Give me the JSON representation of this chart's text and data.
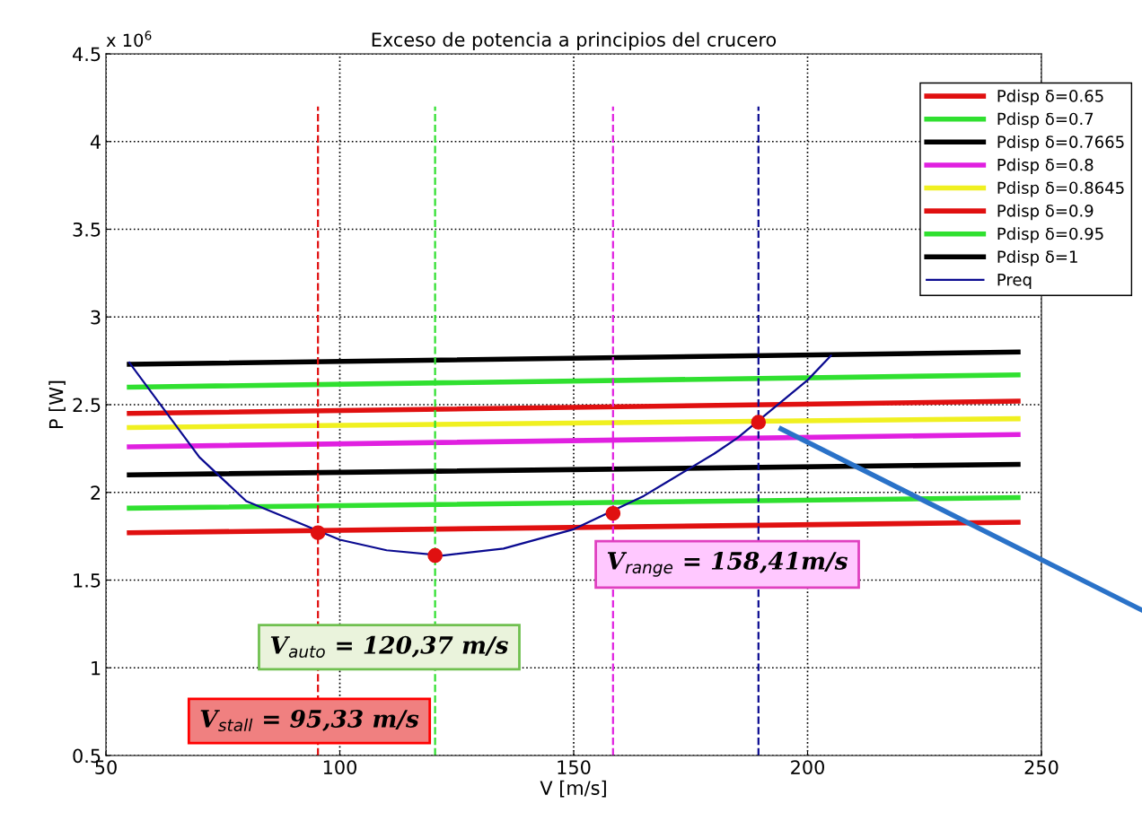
{
  "chart_data": {
    "type": "line",
    "title": "Exceso de potencia a principios del crucero",
    "xlabel": "V [m/s]",
    "ylabel": "P [W]",
    "xlim": [
      50,
      250
    ],
    "xticks": [
      50,
      100,
      150,
      200,
      250
    ],
    "ylim": [
      0.5,
      4.5
    ],
    "yticks": [
      0.5,
      1,
      1.5,
      2,
      2.5,
      3,
      3.5,
      4,
      4.5
    ],
    "grid": true,
    "legend": "top right",
    "series": [
      {
        "name": "Pdisp δ=0.65",
        "color": "#e01010",
        "x": [
          55,
          245
        ],
        "values": [
          1.77,
          1.83
        ]
      },
      {
        "name": "Pdisp δ=0.7",
        "color": "#30e030",
        "x": [
          55,
          245
        ],
        "values": [
          1.91,
          1.97
        ]
      },
      {
        "name": "Pdisp δ=0.7665",
        "color": "#000000",
        "x": [
          55,
          245
        ],
        "values": [
          2.1,
          2.16
        ]
      },
      {
        "name": "Pdisp δ=0.8",
        "color": "#e020e0",
        "x": [
          55,
          245
        ],
        "values": [
          2.26,
          2.33
        ]
      },
      {
        "name": "Pdisp δ=0.8645",
        "color": "#f0f020",
        "x": [
          55,
          245
        ],
        "values": [
          2.37,
          2.42
        ]
      },
      {
        "name": "Pdisp δ=0.9",
        "color": "#e01010",
        "x": [
          55,
          245
        ],
        "values": [
          2.45,
          2.52
        ]
      },
      {
        "name": "Pdisp δ=0.95",
        "color": "#30e030",
        "x": [
          55,
          245
        ],
        "values": [
          2.6,
          2.67
        ]
      },
      {
        "name": "Pdisp δ=1",
        "color": "#000000",
        "x": [
          55,
          245
        ],
        "values": [
          2.73,
          2.8
        ]
      },
      {
        "name": "Preq",
        "color": "#0a0a90",
        "x": [
          55,
          70,
          80,
          100,
          110,
          122,
          135,
          150,
          165,
          170,
          180,
          185,
          200,
          205
        ],
        "values": [
          2.74,
          2.2,
          1.95,
          1.73,
          1.67,
          1.64,
          1.68,
          1.79,
          1.98,
          2.06,
          2.22,
          2.31,
          2.64,
          2.78
        ]
      },
      {
        "color": "#e01010",
        "line_style": "dashed",
        "x": [
          95.33,
          95.33
        ],
        "values": [
          0.5,
          4.2
        ]
      },
      {
        "color": "#30e030",
        "line_style": "dashed",
        "x": [
          120.37,
          120.37
        ],
        "values": [
          0.5,
          4.2
        ]
      },
      {
        "color": "#e020e0",
        "line_style": "dashed",
        "x": [
          158.41,
          158.41
        ],
        "values": [
          0.5,
          4.2
        ]
      },
      {
        "color": "#0a0a90",
        "line_style": "dashed",
        "x": [
          189.5,
          189.5
        ],
        "values": [
          0.5,
          4.2
        ]
      },
      {
        "type": "scatter",
        "marker": "circle",
        "color": "#e01010",
        "x": [
          95.33,
          120.37,
          158.41,
          189.5
        ],
        "values": [
          1.77,
          1.64,
          1.88,
          2.4
        ]
      }
    ],
    "annotations": [
      "x 10$^{6}$",
      "V$_{stall}$ = 95,33 m/s",
      "V$_{auto}$ = 120,37 m/s",
      "V$_{range}$ = 158,41m/s"
    ]
  }
}
